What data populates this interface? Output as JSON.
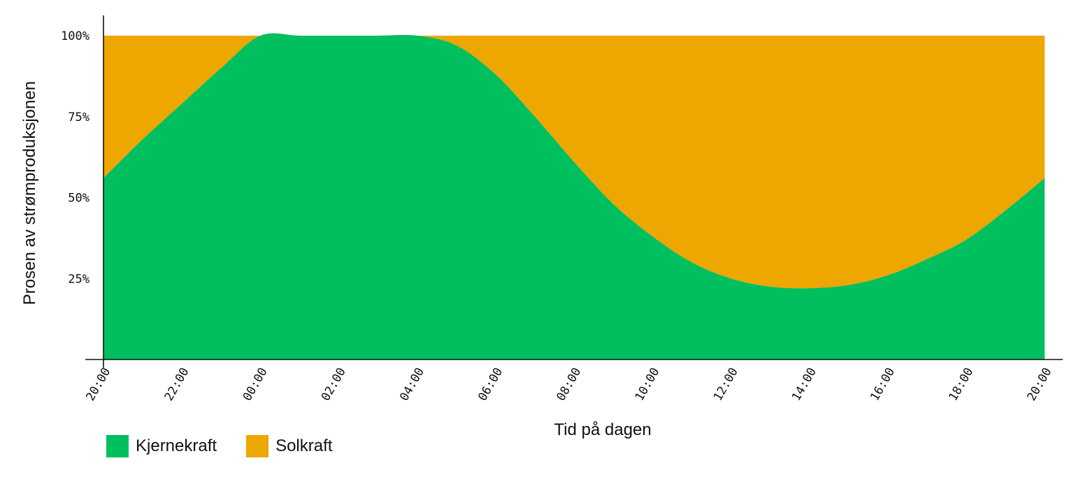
{
  "chart_data": {
    "type": "area",
    "stacked": true,
    "normalized_percent": true,
    "xlabel": "Tid på dagen",
    "ylabel": "Prosen av strømproduksjonen",
    "ylim": [
      0,
      100
    ],
    "y_ticks": [
      "25%",
      "50%",
      "75%",
      "100%"
    ],
    "y_tick_values": [
      25,
      50,
      75,
      100
    ],
    "x_ticks": [
      "20:00",
      "22:00",
      "00:00",
      "02:00",
      "04:00",
      "06:00",
      "08:00",
      "10:00",
      "12:00",
      "14:00",
      "16:00",
      "18:00",
      "20:00"
    ],
    "x": [
      "20:00",
      "21:00",
      "22:00",
      "23:00",
      "00:00",
      "01:00",
      "02:00",
      "03:00",
      "04:00",
      "05:00",
      "06:00",
      "07:00",
      "08:00",
      "09:00",
      "10:00",
      "11:00",
      "12:00",
      "13:00",
      "14:00",
      "15:00",
      "16:00",
      "17:00",
      "18:00",
      "19:00",
      "20:00"
    ],
    "series": [
      {
        "name": "Kjernekraft",
        "color": "#00bf5f",
        "values": [
          56,
          68,
          79,
          90,
          100,
          100,
          100,
          100,
          100,
          97,
          88,
          75,
          61,
          48,
          38,
          30,
          25,
          22.5,
          22,
          23,
          26,
          31,
          37,
          46,
          56
        ]
      },
      {
        "name": "Solkraft",
        "color": "#eea600",
        "values": [
          44,
          32,
          21,
          10,
          0,
          0,
          0,
          0,
          0,
          3,
          12,
          25,
          39,
          52,
          62,
          70,
          75,
          77.5,
          78,
          77,
          74,
          69,
          63,
          54,
          44
        ]
      }
    ],
    "grid": false,
    "legend_position": "bottom-left"
  }
}
